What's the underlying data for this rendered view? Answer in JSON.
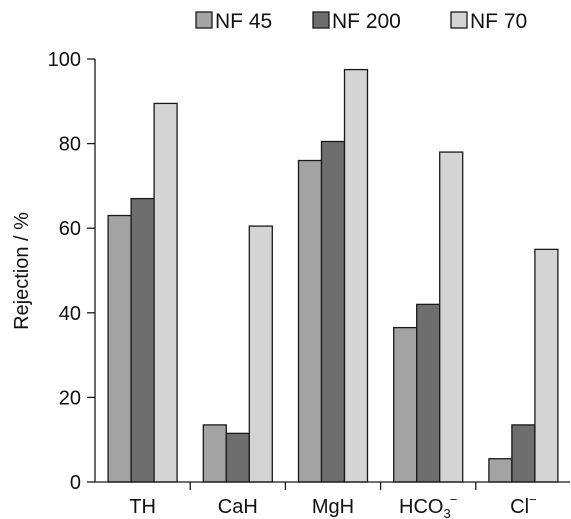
{
  "chart_data": {
    "type": "bar",
    "title": "",
    "xlabel": "",
    "ylabel": "Rejection / %",
    "ylim": [
      0,
      100
    ],
    "yticks": [
      0,
      20,
      40,
      60,
      80,
      100
    ],
    "grid": false,
    "legend_position": "top",
    "categories": [
      {
        "main": "TH",
        "sub": "",
        "sup": ""
      },
      {
        "main": "CaH",
        "sub": "",
        "sup": ""
      },
      {
        "main": "MgH",
        "sub": "",
        "sup": ""
      },
      {
        "main": "HCO",
        "sub": "3",
        "sup": "−"
      },
      {
        "main": "Cl",
        "sub": "",
        "sup": "−"
      }
    ],
    "series": [
      {
        "name": "NF 45",
        "color": "#a3a3a3",
        "values": [
          63,
          13.5,
          76,
          36.5,
          5.5
        ]
      },
      {
        "name": "NF 200",
        "color": "#6e6e6e",
        "values": [
          67,
          11.5,
          80.5,
          42,
          13.5
        ]
      },
      {
        "name": "NF 70",
        "color": "#d4d4d4",
        "values": [
          89.5,
          60.5,
          97.5,
          78,
          55
        ]
      }
    ]
  }
}
